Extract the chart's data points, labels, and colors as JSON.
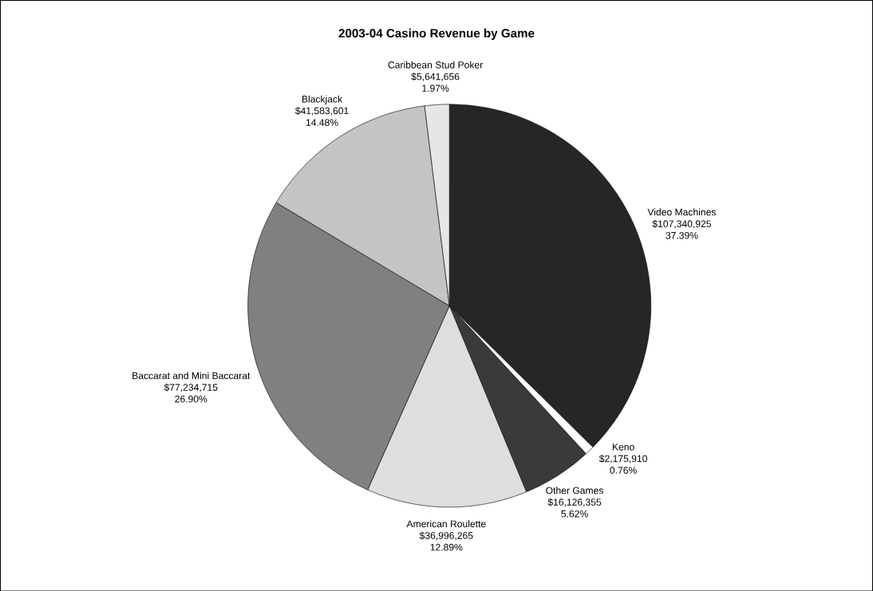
{
  "chart_data": {
    "type": "pie",
    "title": "2003-04 Casino Revenue by Game",
    "categories": [
      "Video Machines",
      "Keno",
      "Other Games",
      "American Roulette",
      "Baccarat and Mini Baccarat",
      "Blackjack",
      "Caribbean Stud Poker"
    ],
    "values": [
      107340925,
      2175910,
      16126355,
      36996265,
      77234715,
      41583601,
      5641656
    ],
    "value_labels": [
      "$107,340,925",
      "$2,175,910",
      "$16,126,355",
      "$36,996,265",
      "$77,234,715",
      "$41,583,601",
      "$5,641,656"
    ],
    "colors": [
      "#262626",
      "#ffffff",
      "#3a3a3a",
      "#dedede",
      "#808080",
      "#c4c4c4",
      "#e6e6e6"
    ],
    "annotations": [
      {
        "text": "37.39%",
        "x": "Video Machines"
      },
      {
        "text": "0.76%",
        "x": "Keno"
      },
      {
        "text": "5.62%",
        "x": "Other Games"
      },
      {
        "text": "12.89%",
        "x": "American Roulette"
      },
      {
        "text": "26.90%",
        "x": "Baccarat and Mini Baccarat"
      },
      {
        "text": "14.48%",
        "x": "Blackjack"
      },
      {
        "text": "1.97%",
        "x": "Caribbean Stud Poker"
      }
    ]
  }
}
